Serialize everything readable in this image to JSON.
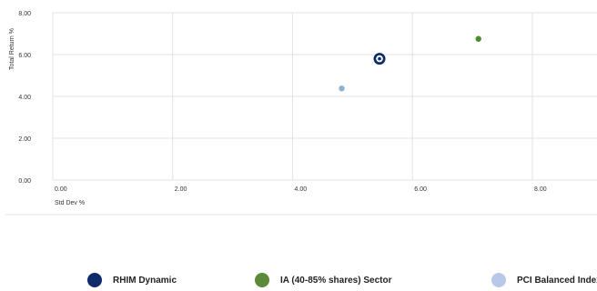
{
  "chart_data": {
    "type": "scatter",
    "xlabel": "Std Dev %",
    "ylabel": "Total Return %",
    "xlim": [
      0,
      8.6
    ],
    "ylim": [
      0,
      8
    ],
    "x_ticks": [
      "0.00",
      "2.00",
      "4.00",
      "6.00",
      "8.00"
    ],
    "y_ticks": [
      "0.00",
      "2.00",
      "4.00",
      "6.00",
      "8.00"
    ],
    "grid": true,
    "legend_position": "bottom",
    "series": [
      {
        "name": "RHIM Dynamic",
        "x": 5.45,
        "y": 5.8,
        "color": "#0d2a6b",
        "marker": "ring"
      },
      {
        "name": "IA (40-85% shares) Sector",
        "x": 7.1,
        "y": 6.75,
        "color": "#4e8a2e",
        "marker": "dot"
      },
      {
        "name": "PCI Balanced Index",
        "x": 4.82,
        "y": 4.38,
        "color": "#8fb0cf",
        "marker": "dot"
      }
    ]
  },
  "legend_colors": [
    "#0d2a6b",
    "#5a8a3a",
    "#b7c9e6"
  ]
}
